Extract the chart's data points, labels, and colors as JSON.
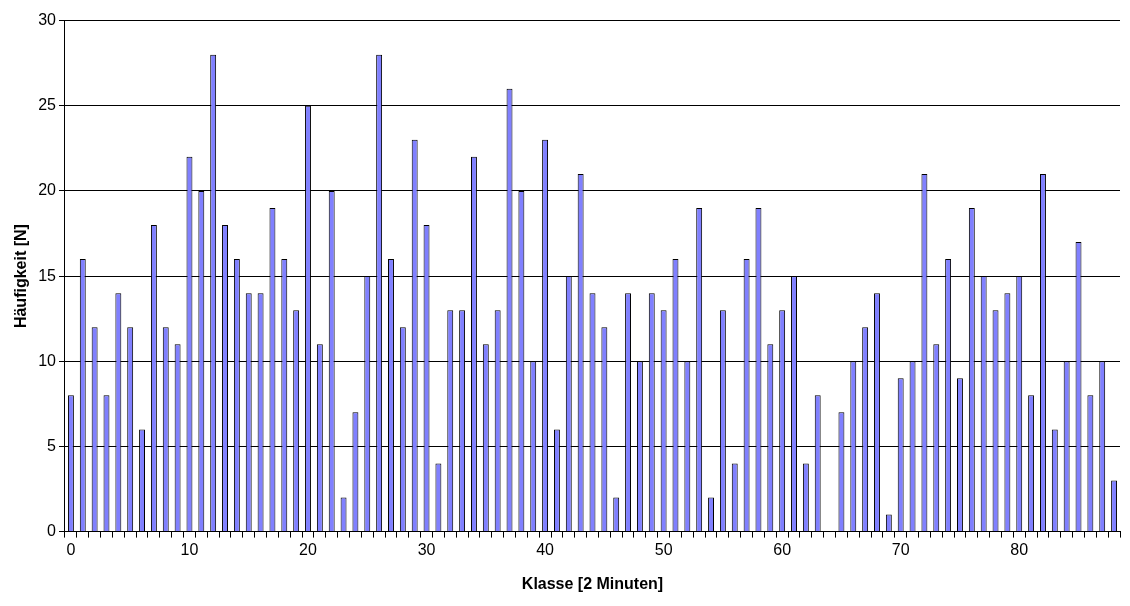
{
  "chart_data": {
    "type": "bar",
    "xlabel": "Klasse [2 Minuten]",
    "ylabel": "Häufigkeit [N]",
    "categories": [
      "0",
      null,
      null,
      null,
      null,
      null,
      null,
      null,
      null,
      null,
      "10",
      null,
      null,
      null,
      null,
      null,
      null,
      null,
      null,
      null,
      "20",
      null,
      null,
      null,
      null,
      null,
      null,
      null,
      null,
      null,
      "30",
      null,
      null,
      null,
      null,
      null,
      null,
      null,
      null,
      null,
      "40",
      null,
      null,
      null,
      null,
      null,
      null,
      null,
      null,
      null,
      "50",
      null,
      null,
      null,
      null,
      null,
      null,
      null,
      null,
      null,
      "60",
      null,
      null,
      null,
      null,
      null,
      null,
      null,
      null,
      null,
      "70",
      null,
      null,
      null,
      null,
      null,
      null,
      null,
      null,
      null,
      "80",
      null,
      null,
      null,
      null,
      null,
      null,
      null,
      null
    ],
    "values": [
      8,
      16,
      12,
      8,
      14,
      12,
      6,
      18,
      12,
      11,
      22,
      20,
      28,
      18,
      16,
      14,
      14,
      19,
      16,
      13,
      25,
      11,
      20,
      2,
      7,
      15,
      28,
      16,
      12,
      23,
      18,
      4,
      13,
      13,
      22,
      11,
      13,
      26,
      20,
      10,
      23,
      6,
      15,
      21,
      14,
      12,
      2,
      14,
      10,
      14,
      13,
      16,
      10,
      19,
      2,
      13,
      4,
      16,
      19,
      11,
      13,
      15,
      4,
      8,
      0,
      7,
      10,
      12,
      14,
      1,
      9,
      10,
      21,
      11,
      16,
      9,
      19,
      15,
      13,
      14,
      15,
      8,
      21,
      6,
      10,
      17,
      8,
      10,
      3
    ],
    "color": "#8080ff",
    "ylim": [
      0,
      30
    ],
    "yticks": [
      0,
      5,
      10,
      15,
      20,
      25,
      30
    ],
    "grid": "y"
  }
}
